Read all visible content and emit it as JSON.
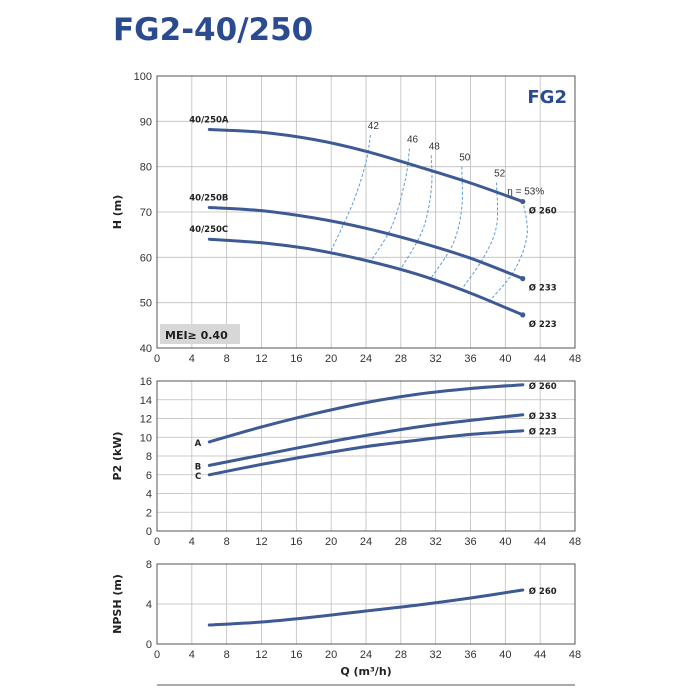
{
  "title": "FG2-40/250",
  "chart_data": [
    {
      "id": "head",
      "type": "line",
      "ylabel": "H (m)",
      "xlabel": "",
      "xlim": [
        0,
        48
      ],
      "ylim": [
        40,
        100
      ],
      "xticks": [
        0,
        4,
        8,
        12,
        16,
        20,
        24,
        28,
        32,
        36,
        40,
        44,
        48
      ],
      "yticks": [
        40,
        50,
        60,
        70,
        80,
        90,
        100
      ],
      "badge": "FG2",
      "mei_label": "MEI≥ 0.40",
      "series": [
        {
          "name": "40/250A",
          "end_label": "Ø 260",
          "x": [
            6,
            12,
            18,
            24,
            30,
            36,
            42
          ],
          "y": [
            88.2,
            87.6,
            86.0,
            83.4,
            80.0,
            76.4,
            72.3
          ]
        },
        {
          "name": "40/250B",
          "end_label": "Ø 233",
          "x": [
            6,
            12,
            18,
            24,
            30,
            36,
            42
          ],
          "y": [
            71.0,
            70.3,
            68.7,
            66.4,
            63.4,
            59.8,
            55.3
          ]
        },
        {
          "name": "40/250C",
          "end_label": "Ø 223",
          "x": [
            6,
            12,
            18,
            24,
            30,
            36,
            42
          ],
          "y": [
            64.0,
            63.2,
            61.7,
            59.3,
            56.2,
            52.1,
            47.3
          ]
        }
      ],
      "efficiency": [
        {
          "label": "42",
          "x": [
            24.5,
            24.0,
            22.5,
            20.0
          ],
          "y": [
            87.0,
            81.0,
            72.0,
            61.5
          ]
        },
        {
          "label": "46",
          "x": [
            29.0,
            28.5,
            27.0,
            24.5
          ],
          "y": [
            84.0,
            77.0,
            67.0,
            59.0
          ]
        },
        {
          "label": "48",
          "x": [
            31.5,
            31.5,
            30.5,
            28.0
          ],
          "y": [
            82.5,
            75.0,
            66.0,
            57.5
          ]
        },
        {
          "label": "50",
          "x": [
            35.0,
            35.0,
            34.0,
            31.5
          ],
          "y": [
            80.0,
            71.0,
            63.0,
            55.5
          ]
        },
        {
          "label": "52",
          "x": [
            39.0,
            39.0,
            37.5,
            35.0
          ],
          "y": [
            76.5,
            67.0,
            60.0,
            53.0
          ]
        },
        {
          "label": "η = 53%",
          "x": [
            42.0,
            42.5,
            41.0,
            38.0
          ],
          "y": [
            72.5,
            65.0,
            57.0,
            50.0
          ]
        }
      ]
    },
    {
      "id": "power",
      "type": "line",
      "ylabel": "P2 (kW)",
      "xlabel": "",
      "xlim": [
        0,
        48
      ],
      "ylim": [
        0,
        16
      ],
      "xticks": [
        0,
        4,
        8,
        12,
        16,
        20,
        24,
        28,
        32,
        36,
        40,
        44,
        48
      ],
      "yticks": [
        0,
        2,
        4,
        6,
        8,
        10,
        12,
        14,
        16
      ],
      "series": [
        {
          "name": "A",
          "end_label": "Ø 260",
          "x": [
            6,
            12,
            18,
            24,
            30,
            36,
            42
          ],
          "y": [
            9.5,
            11.1,
            12.5,
            13.7,
            14.6,
            15.2,
            15.6
          ]
        },
        {
          "name": "B",
          "end_label": "Ø 233",
          "x": [
            6,
            12,
            18,
            24,
            30,
            36,
            42
          ],
          "y": [
            7.0,
            8.1,
            9.2,
            10.2,
            11.1,
            11.8,
            12.4
          ]
        },
        {
          "name": "C",
          "end_label": "Ø 223",
          "x": [
            6,
            12,
            18,
            24,
            30,
            36,
            42
          ],
          "y": [
            6.0,
            7.1,
            8.1,
            9.0,
            9.7,
            10.3,
            10.7
          ]
        }
      ]
    },
    {
      "id": "npsh",
      "type": "line",
      "ylabel": "NPSH (m)",
      "xlabel": "Q (m³/h)",
      "xlim": [
        0,
        48
      ],
      "ylim": [
        0,
        8
      ],
      "xticks": [
        0,
        4,
        8,
        12,
        16,
        20,
        24,
        28,
        32,
        36,
        40,
        44,
        48
      ],
      "yticks": [
        0,
        4,
        8
      ],
      "series": [
        {
          "name": "",
          "end_label": "Ø 260",
          "x": [
            6,
            12,
            18,
            24,
            30,
            36,
            42
          ],
          "y": [
            1.9,
            2.2,
            2.7,
            3.3,
            3.9,
            4.6,
            5.4
          ]
        }
      ]
    }
  ]
}
